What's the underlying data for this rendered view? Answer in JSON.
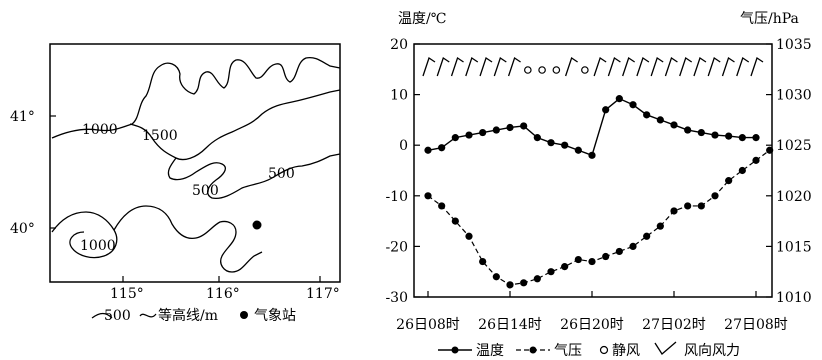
{
  "map": {
    "lat_labels": [
      "41°",
      "40°"
    ],
    "lon_labels": [
      "115°",
      "116°",
      "117°"
    ],
    "contour_labels": [
      "1000",
      "1500",
      "500",
      "500",
      "1000"
    ],
    "legend": {
      "contour_value": "500",
      "contour_text": "等高线/m",
      "station_text": "气象站"
    }
  },
  "chart_data": {
    "type": "line",
    "left_axis": {
      "label": "温度/℃",
      "range": [
        -30,
        20
      ],
      "ticks": [
        "20",
        "10",
        "0",
        "-10",
        "-20",
        "-30"
      ]
    },
    "right_axis": {
      "label": "气压/hPa",
      "range": [
        1010,
        1035
      ],
      "ticks": [
        "1035",
        "1030",
        "1025",
        "1020",
        "1015",
        "1010"
      ]
    },
    "x_ticks": [
      "26日08时",
      "26日14时",
      "26日20时",
      "27日02时",
      "27日08时"
    ],
    "x_range": [
      0,
      24
    ],
    "series": [
      {
        "name": "温度",
        "axis": "left",
        "marker": "filled-circle",
        "line": "solid",
        "x": [
          0,
          1,
          2,
          3,
          4,
          5,
          6,
          7,
          8,
          9,
          10,
          11,
          12,
          13,
          14,
          15,
          16,
          17,
          18,
          19,
          20,
          21,
          22,
          23,
          24
        ],
        "values": [
          -1,
          -0.5,
          1.5,
          2,
          2.5,
          3,
          3.5,
          3.8,
          1.5,
          0.5,
          0,
          -1,
          -2,
          7,
          9.2,
          8,
          6,
          5,
          4,
          3,
          2.5,
          2,
          1.8,
          1.5,
          1.5
        ]
      },
      {
        "name": "气压",
        "axis": "right",
        "marker": "filled-circle",
        "line": "dashed",
        "x": [
          0,
          1,
          2,
          3,
          4,
          5,
          6,
          7,
          8,
          9,
          10,
          11,
          12,
          13,
          14,
          15,
          16,
          17,
          18,
          19,
          20,
          21,
          22,
          23,
          24,
          25
        ],
        "values": [
          1020,
          1019,
          1017.5,
          1016,
          1013.5,
          1012,
          1011.2,
          1011.4,
          1011.8,
          1012.5,
          1013,
          1013.7,
          1013.5,
          1014,
          1014.5,
          1015,
          1016,
          1017,
          1018.5,
          1019,
          1019,
          1020,
          1021.5,
          1022.5,
          1023.5,
          1024.5
        ]
      }
    ],
    "wind_symbols": [
      "wind",
      "wind",
      "wind",
      "wind",
      "wind",
      "wind",
      "wind",
      "calm",
      "calm",
      "calm",
      "wind",
      "calm",
      "wind",
      "wind",
      "wind",
      "wind",
      "wind",
      "wind",
      "wind",
      "wind",
      "wind",
      "wind",
      "wind",
      "wind"
    ],
    "legend": {
      "temp": "温度",
      "pressure": "气压",
      "calm": "静风",
      "wind": "风向风力"
    }
  }
}
